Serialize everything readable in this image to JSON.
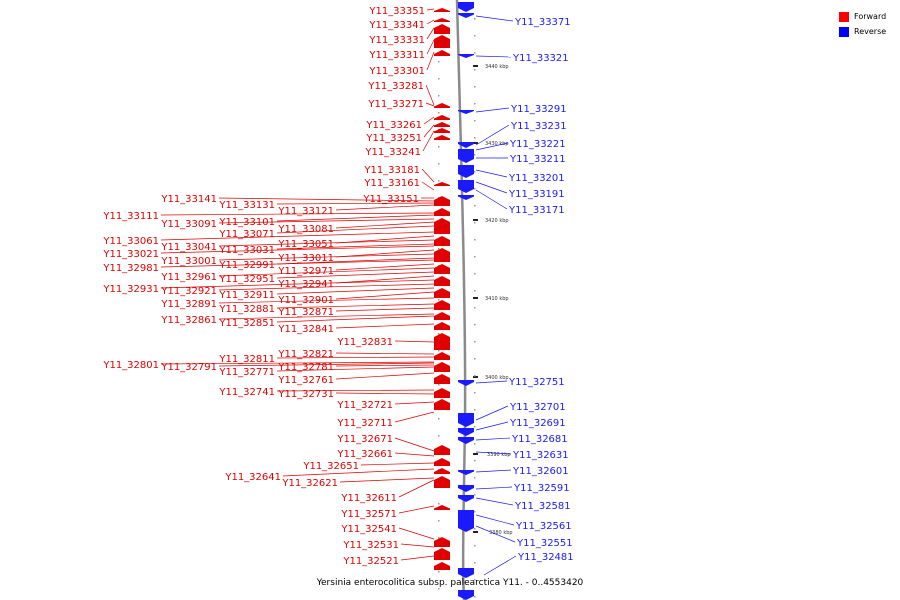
{
  "caption": "Yersinia enterocolitica subsp. palearctica Y11. - 0..4553420",
  "legend": [
    {
      "label": "Forward",
      "color": "#ff0000"
    },
    {
      "label": "Reverse",
      "color": "#0000ff"
    }
  ],
  "colors": {
    "forward": "#e00000",
    "reverse": "#1a1aff",
    "backbone": "#8a8a8a"
  },
  "ticks": [
    "3440 kbp",
    "3430 kbp",
    "3420 kbp",
    "3410 kbp",
    "3400 kbp",
    "3390 kbp",
    "3380 kbp"
  ],
  "reverse_labels": [
    "Y11_33371",
    "Y11_33321",
    "Y11_33291",
    "Y11_33231",
    "Y11_33221",
    "Y11_33211",
    "Y11_33201",
    "Y11_33191",
    "Y11_33171",
    "Y11_32751",
    "Y11_32701",
    "Y11_32691",
    "Y11_32681",
    "Y11_32631",
    "Y11_32601",
    "Y11_32591",
    "Y11_32581",
    "Y11_32561",
    "Y11_32551",
    "Y11_32481"
  ],
  "forward_labels": [
    "Y11_33351",
    "Y11_33341",
    "Y11_33331",
    "Y11_33311",
    "Y11_33301",
    "Y11_33281",
    "Y11_33271",
    "Y11_33261",
    "Y11_33251",
    "Y11_33241",
    "Y11_33181",
    "Y11_33161",
    "Y11_33151",
    "Y11_33141",
    "Y11_33131",
    "Y11_33121",
    "Y11_33111",
    "Y11_33101",
    "Y11_33091",
    "Y11_33081",
    "Y11_33071",
    "Y11_33061",
    "Y11_33051",
    "Y11_33041",
    "Y11_33031",
    "Y11_33021",
    "Y11_33011",
    "Y11_33001",
    "Y11_32991",
    "Y11_32981",
    "Y11_32971",
    "Y11_32961",
    "Y11_32951",
    "Y11_32941",
    "Y11_32931",
    "Y11_32921",
    "Y11_32911",
    "Y11_32901",
    "Y11_32891",
    "Y11_32881",
    "Y11_32871",
    "Y11_32861",
    "Y11_32851",
    "Y11_32841",
    "Y11_32831",
    "Y11_32821",
    "Y11_32811",
    "Y11_32801",
    "Y11_32791",
    "Y11_32781",
    "Y11_32771",
    "Y11_32761",
    "Y11_32741",
    "Y11_32731",
    "Y11_32721",
    "Y11_32711",
    "Y11_32671",
    "Y11_32661",
    "Y11_32651",
    "Y11_32641",
    "Y11_32621",
    "Y11_32611",
    "Y11_32571",
    "Y11_32541",
    "Y11_32531",
    "Y11_32521"
  ]
}
